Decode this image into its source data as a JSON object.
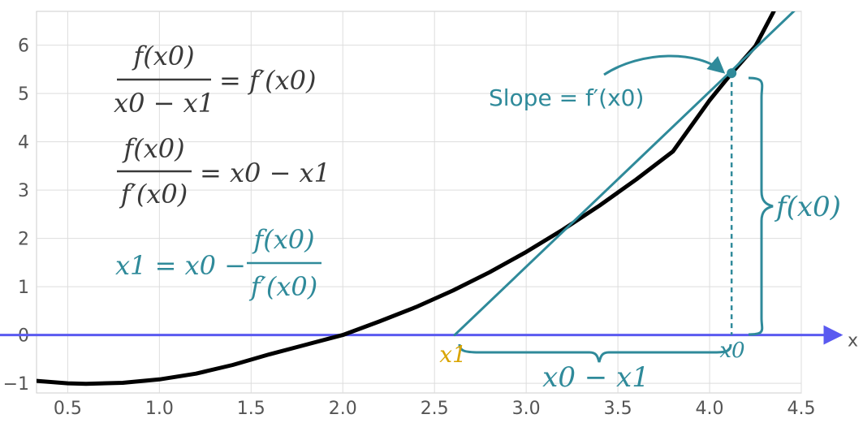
{
  "chart_data": {
    "type": "line",
    "title": "",
    "xlabel": "x",
    "ylabel": "",
    "xlim": [
      0.33,
      4.5
    ],
    "ylim": [
      -1.2,
      6.7
    ],
    "x_ticks": [
      "0.5",
      "1.0",
      "1.5",
      "2.0",
      "2.5",
      "3.0",
      "3.5",
      "4.0",
      "4.5"
    ],
    "x_tick_values": [
      0.5,
      1.0,
      1.5,
      2.0,
      2.5,
      3.0,
      3.5,
      4.0,
      4.5
    ],
    "y_ticks": [
      "−1",
      "0",
      "1",
      "2",
      "3",
      "4",
      "5",
      "6"
    ],
    "y_tick_values": [
      -1,
      0,
      1,
      2,
      3,
      4,
      5,
      6
    ],
    "grid": true,
    "series": [
      {
        "role": "function curve",
        "color": "#000000",
        "x": [
          0.33,
          0.5,
          0.6,
          0.8,
          1.0,
          1.2,
          1.4,
          1.6,
          1.8,
          2.0,
          2.2,
          2.4,
          2.6,
          2.8,
          3.0,
          3.2,
          3.4,
          3.6,
          3.8,
          4.0,
          4.12,
          4.25,
          4.35
        ],
        "y": [
          -0.95,
          -1.0,
          -1.01,
          -0.99,
          -0.92,
          -0.8,
          -0.62,
          -0.4,
          -0.2,
          0.0,
          0.28,
          0.58,
          0.92,
          1.3,
          1.72,
          2.18,
          2.68,
          3.22,
          3.8,
          4.86,
          5.42,
          5.98,
          6.7
        ]
      },
      {
        "role": "tangent line",
        "color": "#2f8a9a",
        "x": [
          2.61,
          4.5
        ],
        "y": [
          0.0,
          6.85
        ]
      }
    ],
    "points": [
      {
        "label": "x0",
        "x": 4.12,
        "y": 5.42,
        "color": "#2f8a9a"
      }
    ],
    "annotations": {
      "eq1_num": "f(x0)",
      "eq1_den": "x0 − x1",
      "eq1_rhs": "= f′(x0)",
      "eq2_num": "f(x0)",
      "eq2_den": "f′(x0)",
      "eq2_rhs": "= x0 − x1",
      "eq3_lhs": "x1 = x0 −",
      "eq3_num": "f(x0)",
      "eq3_den": "f′(x0)",
      "slope_label": "Slope = f′(x0)",
      "brace_vertical_label": "f(x0)",
      "brace_horizontal_label": "x0 − x1",
      "x1_label": "x1",
      "x0_label": "x0"
    },
    "colors": {
      "curve": "#000000",
      "tangent": "#2f8a9a",
      "axis": "#5a5af0",
      "x1": "#d9a400",
      "text_dark": "#3a3a3a"
    }
  }
}
